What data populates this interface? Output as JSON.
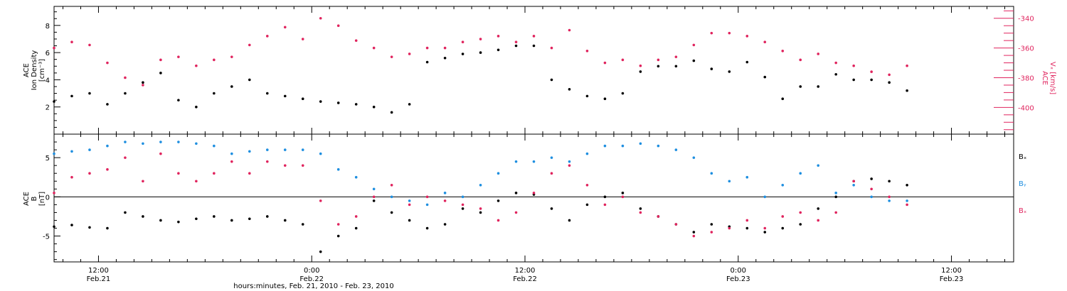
{
  "colors": {
    "black": "#000000",
    "magenta": "#e0245e",
    "blue": "#1f8fe0"
  },
  "xaxis": {
    "title": "hours:minutes, Feb. 21, 2010 - Feb. 23, 2010",
    "tick_hours": [
      12,
      24,
      36,
      48,
      60
    ],
    "tick_labels": [
      [
        "12:00",
        "Feb.21"
      ],
      [
        "0:00",
        "Feb.22"
      ],
      [
        "12:00",
        "Feb.22"
      ],
      [
        "0:00",
        "Feb.23"
      ],
      [
        "12:00",
        "Feb.23"
      ]
    ],
    "range_hours": [
      9.5,
      63.5
    ]
  },
  "panel1": {
    "ylabel": [
      "ACE",
      "Ion Density",
      "[cm⁻³]"
    ],
    "ylim": [
      0,
      9.4
    ],
    "yticks": [
      2,
      4,
      6,
      8
    ],
    "ylabel_right": [
      "ACE",
      "Vₓ [km/s]"
    ],
    "ylim_right": [
      -418,
      -332
    ],
    "yticks_right": [
      -340,
      -360,
      -380,
      -400
    ]
  },
  "panel2": {
    "ylabel": [
      "ACE",
      "B",
      "[nT]"
    ],
    "ylim": [
      -8.3,
      8.0
    ],
    "yticks": [
      5,
      0,
      -5
    ],
    "legend": [
      "Bₓ",
      "Bᵧ",
      "Bₓ"
    ]
  },
  "chart_data": [
    {
      "type": "scatter",
      "title": "",
      "xlabel": "hours:minutes, Feb. 21, 2010 - Feb. 23, 2010",
      "ylabel": "ACE Ion Density [cm⁻³]",
      "ylabel_right": "ACE Vₓ [km/s]",
      "x_unit": "hours since Feb. 21, 2010 0:00",
      "series": [
        {
          "name": "Ion Density",
          "axis": "left",
          "color": "#000000",
          "x": [
            9.5,
            10.5,
            11.5,
            12.5,
            13.5,
            14.5,
            15.5,
            16.5,
            17.5,
            18.5,
            19.5,
            20.5,
            21.5,
            22.5,
            23.5,
            24.5,
            25.5,
            26.5,
            27.5,
            28.5,
            29.5,
            30.5,
            31.5,
            32.5,
            33.5,
            34.5,
            35.5,
            36.5,
            37.5,
            38.5,
            39.5,
            40.5,
            41.5,
            42.5,
            43.5,
            44.5,
            45.5,
            46.5,
            47.5,
            48.5,
            49.5,
            50.5,
            51.5,
            52.5,
            53.5,
            54.5,
            55.5,
            56.5,
            57.5
          ],
          "y": [
            2.4,
            2.8,
            3.0,
            2.2,
            3.0,
            3.8,
            4.5,
            2.5,
            2.0,
            3.0,
            3.5,
            4.0,
            3.0,
            2.8,
            2.6,
            2.4,
            2.3,
            2.2,
            2.0,
            1.6,
            2.2,
            5.3,
            5.6,
            5.9,
            6.0,
            6.2,
            6.5,
            6.5,
            4.0,
            3.3,
            2.8,
            2.6,
            3.0,
            4.6,
            5.0,
            5.0,
            5.4,
            4.8,
            4.6,
            5.3,
            4.2,
            2.6,
            3.5,
            3.5,
            4.4,
            4.0,
            4.0,
            3.8,
            3.2
          ]
        },
        {
          "name": "Vx",
          "axis": "right",
          "color": "#e0245e",
          "x": [
            9.5,
            10.5,
            11.5,
            12.5,
            13.5,
            14.5,
            15.5,
            16.5,
            17.5,
            18.5,
            19.5,
            20.5,
            21.5,
            22.5,
            23.5,
            24.5,
            25.5,
            26.5,
            27.5,
            28.5,
            29.5,
            30.5,
            31.5,
            32.5,
            33.5,
            34.5,
            35.5,
            36.5,
            37.5,
            38.5,
            39.5,
            40.5,
            41.5,
            42.5,
            43.5,
            44.5,
            45.5,
            46.5,
            47.5,
            48.5,
            49.5,
            50.5,
            51.5,
            52.5,
            53.5,
            54.5,
            55.5,
            56.5,
            57.5
          ],
          "y": [
            -360,
            -356,
            -358,
            -370,
            -380,
            -385,
            -368,
            -366,
            -372,
            -368,
            -366,
            -358,
            -352,
            -346,
            -354,
            -340,
            -345,
            -355,
            -360,
            -366,
            -364,
            -360,
            -360,
            -356,
            -354,
            -352,
            -356,
            -352,
            -360,
            -348,
            -362,
            -370,
            -368,
            -372,
            -368,
            -366,
            -358,
            -350,
            -350,
            -352,
            -356,
            -362,
            -368,
            -364,
            -370,
            -372,
            -376,
            -378,
            -372
          ]
        }
      ]
    },
    {
      "type": "scatter",
      "title": "",
      "xlabel": "hours:minutes, Feb. 21, 2010 - Feb. 23, 2010",
      "ylabel": "ACE B [nT]",
      "x_unit": "hours since Feb. 21, 2010 0:00",
      "series": [
        {
          "name": "Bₓ",
          "color": "#000000",
          "x": [
            9.5,
            10.5,
            11.5,
            12.5,
            13.5,
            14.5,
            15.5,
            16.5,
            17.5,
            18.5,
            19.5,
            20.5,
            21.5,
            22.5,
            23.5,
            24.5,
            25.5,
            26.5,
            27.5,
            28.5,
            29.5,
            30.5,
            31.5,
            32.5,
            33.5,
            34.5,
            35.5,
            36.5,
            37.5,
            38.5,
            39.5,
            40.5,
            41.5,
            42.5,
            43.5,
            44.5,
            45.5,
            46.5,
            47.5,
            48.5,
            49.5,
            50.5,
            51.5,
            52.5,
            53.5,
            54.5,
            55.5,
            56.5,
            57.5
          ],
          "y": [
            -3.8,
            -3.6,
            -3.9,
            -4.0,
            -2.0,
            -2.5,
            -3.0,
            -3.2,
            -2.8,
            -2.5,
            -3.0,
            -2.8,
            -2.5,
            -3.0,
            -3.5,
            -7.0,
            -5.0,
            -4.0,
            -0.5,
            -2.0,
            -3.0,
            -4.0,
            -3.5,
            -1.5,
            -2.0,
            -0.5,
            0.5,
            0.3,
            -1.5,
            -3.0,
            -1.0,
            0.0,
            0.5,
            -1.5,
            -2.5,
            -3.5,
            -4.5,
            -3.5,
            -3.8,
            -4.0,
            -4.5,
            -4.0,
            -3.5,
            -1.5,
            0.0,
            2.0,
            2.3,
            2.0,
            1.5
          ]
        },
        {
          "name": "Bᵧ",
          "color": "#1f8fe0",
          "x": [
            9.5,
            10.5,
            11.5,
            12.5,
            13.5,
            14.5,
            15.5,
            16.5,
            17.5,
            18.5,
            19.5,
            20.5,
            21.5,
            22.5,
            23.5,
            24.5,
            25.5,
            26.5,
            27.5,
            28.5,
            29.5,
            30.5,
            31.5,
            32.5,
            33.5,
            34.5,
            35.5,
            36.5,
            37.5,
            38.5,
            39.5,
            40.5,
            41.5,
            42.5,
            43.5,
            44.5,
            45.5,
            46.5,
            47.5,
            48.5,
            49.5,
            50.5,
            51.5,
            52.5,
            53.5,
            54.5,
            55.5,
            56.5,
            57.5
          ],
          "y": [
            5.5,
            5.8,
            6.0,
            6.5,
            7.0,
            6.8,
            7.0,
            7.0,
            6.8,
            6.5,
            5.5,
            5.8,
            6.0,
            6.0,
            6.0,
            5.5,
            3.5,
            2.5,
            1.0,
            0.0,
            -0.5,
            -1.0,
            0.5,
            0.0,
            1.5,
            3.0,
            4.5,
            4.5,
            5.0,
            4.5,
            5.5,
            6.5,
            6.5,
            6.8,
            6.5,
            6.0,
            5.0,
            3.0,
            2.0,
            2.5,
            0.0,
            1.5,
            3.0,
            4.0,
            0.5,
            1.5,
            0.0,
            -0.5,
            -0.5
          ]
        },
        {
          "name": "Bₓ",
          "color": "#e0245e",
          "x": [
            9.5,
            10.5,
            11.5,
            12.5,
            13.5,
            14.5,
            15.5,
            16.5,
            17.5,
            18.5,
            19.5,
            20.5,
            21.5,
            22.5,
            23.5,
            24.5,
            25.5,
            26.5,
            27.5,
            28.5,
            29.5,
            30.5,
            31.5,
            32.5,
            33.5,
            34.5,
            35.5,
            36.5,
            37.5,
            38.5,
            39.5,
            40.5,
            41.5,
            42.5,
            43.5,
            44.5,
            45.5,
            46.5,
            47.5,
            48.5,
            49.5,
            50.5,
            51.5,
            52.5,
            53.5,
            54.5,
            55.5,
            56.5,
            57.5
          ],
          "y": [
            0.5,
            2.5,
            3.0,
            3.5,
            5.0,
            2.0,
            5.5,
            3.0,
            2.0,
            3.0,
            4.5,
            3.0,
            4.5,
            4.0,
            4.0,
            -0.5,
            -3.5,
            -2.5,
            0.0,
            1.5,
            -1.0,
            0.0,
            -0.5,
            -1.0,
            -1.5,
            -3.0,
            -2.0,
            0.5,
            3.0,
            4.0,
            1.5,
            -1.0,
            0.0,
            -2.0,
            -2.5,
            -3.5,
            -5.0,
            -4.5,
            -4.0,
            -3.0,
            -4.0,
            -2.5,
            -2.0,
            -3.0,
            -2.0,
            2.0,
            1.0,
            0.0,
            -1.0
          ]
        }
      ]
    }
  ]
}
